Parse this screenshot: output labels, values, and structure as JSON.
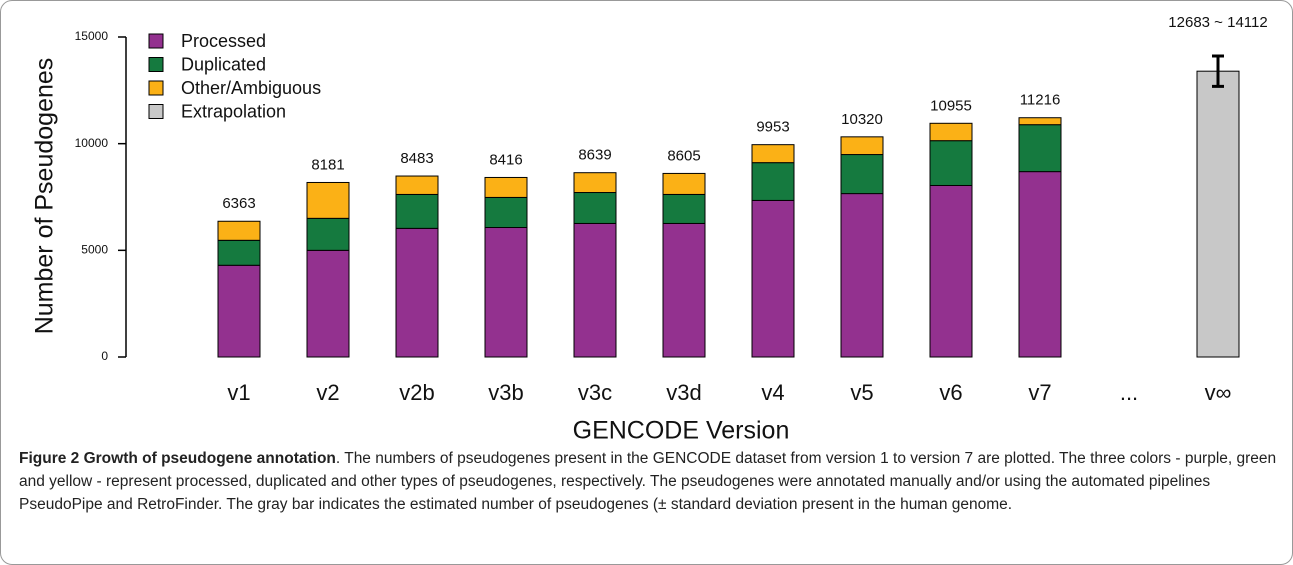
{
  "chart_data": {
    "type": "stacked-bar",
    "categories": [
      "v1",
      "v2",
      "v2b",
      "v3b",
      "v3c",
      "v3d",
      "v4",
      "v5",
      "v6",
      "v7",
      "...",
      "v∞"
    ],
    "x_label": "GENCODE Version",
    "y_label": "Number of Pseudogenes",
    "ylim": [
      0,
      15000
    ],
    "yticks": [
      0,
      5000,
      10000,
      15000
    ],
    "series": [
      {
        "name": "Processed",
        "color": "#93318f",
        "values": [
          4300,
          5000,
          6030,
          6070,
          6260,
          6260,
          7340,
          7660,
          8040,
          8690,
          null,
          null
        ]
      },
      {
        "name": "Duplicated",
        "color": "#157a3f",
        "values": [
          1170,
          1500,
          1590,
          1410,
          1450,
          1360,
          1770,
          1830,
          2100,
          2200,
          null,
          null
        ]
      },
      {
        "name": "Other/Ambiguous",
        "color": "#fbb116",
        "values": [
          893,
          1681,
          863,
          936,
          929,
          985,
          843,
          830,
          815,
          326,
          null,
          null
        ]
      },
      {
        "name": "Extrapolation",
        "color": "#c8c8c8",
        "values": [
          null,
          null,
          null,
          null,
          null,
          null,
          null,
          null,
          null,
          null,
          null,
          13397.5
        ],
        "errors": [
          null,
          null,
          null,
          null,
          null,
          null,
          null,
          null,
          null,
          null,
          null,
          714.5
        ]
      }
    ],
    "totals": [
      6363,
      8181,
      8483,
      8416,
      8639,
      8605,
      9953,
      10320,
      10955,
      11216,
      null,
      null
    ],
    "annotation": "12683 ~ 14112",
    "legend": "upper left"
  },
  "caption": {
    "title": "Figure 2 Growth of pseudogene annotation",
    "text": ". The numbers of pseudogenes present in the GENCODE dataset from version 1 to version 7 are plotted. The three colors - purple, green and yellow - represent processed, duplicated and other types of pseudogenes, respectively. The pseudogenes were annotated manually and/or using the automated pipelines PseudoPipe and RetroFinder. The gray bar indicates the estimated number of pseudogenes (± standard deviation present in the human genome."
  }
}
